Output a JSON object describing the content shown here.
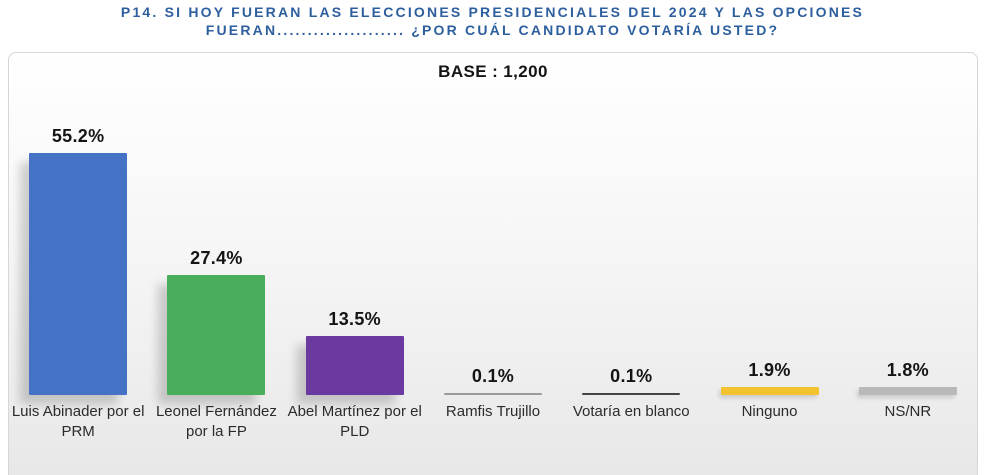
{
  "header": {
    "title_line1": "P14.  SI HOY FUERAN LAS ELECCIONES PRESIDENCIALES DEL 2024 Y LAS OPCIONES",
    "title_line2": "FUERAN..................... ¿POR CUÁL CANDIDATO VOTARÍA USTED?",
    "title_color": "#2d5f9e"
  },
  "chart_data": {
    "type": "bar",
    "title": "P14. SI HOY FUERAN LAS ELECCIONES PRESIDENCIALES DEL 2024 Y LAS OPCIONES FUERAN..................... ¿POR CUÁL CANDIDATO VOTARÍA USTED?",
    "base_label": "BASE : 1,200",
    "categories": [
      "Luis Abinader por el PRM",
      "Leonel Fernández por la FP",
      "Abel Martínez por el PLD",
      "Ramfis Trujillo",
      "Votaría en blanco",
      "Ninguno",
      "NS/NR"
    ],
    "category_lines": [
      [
        "Luis Abinader por el",
        "PRM"
      ],
      [
        "Leonel Fernández",
        "por la FP"
      ],
      [
        "Abel Martínez por el",
        "PLD"
      ],
      [
        "Ramfis Trujillo"
      ],
      [
        "Votaría en blanco"
      ],
      [
        "Ninguno"
      ],
      [
        "NS/NR"
      ]
    ],
    "values": [
      55.2,
      27.4,
      13.5,
      0.1,
      0.1,
      1.9,
      1.8
    ],
    "value_labels": [
      "55.2%",
      "27.4%",
      "13.5%",
      "0.1%",
      "0.1%",
      "1.9%",
      "1.8%"
    ],
    "bar_colors": [
      "#4472c4",
      "#4aad5b",
      "#6b3aa0",
      "#9a9a9a",
      "#434343",
      "#f3c231",
      "#b9b9b9"
    ],
    "ylim": [
      0,
      60
    ],
    "grid": false,
    "legend_position": "none"
  }
}
